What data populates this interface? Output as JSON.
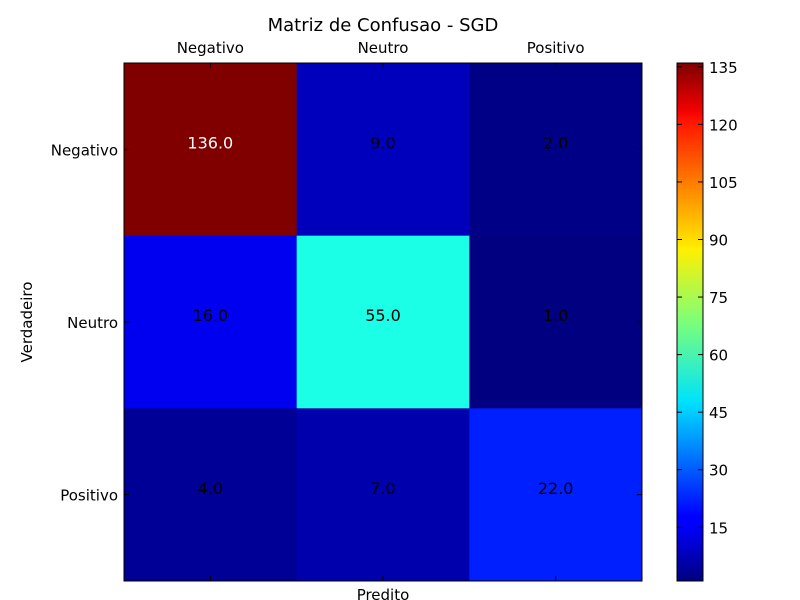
{
  "chart_data": {
    "type": "heatmap",
    "title": "Matriz de Confusao - SGD",
    "xlabel": "Predito",
    "ylabel": "Verdadeiro",
    "x_categories": [
      "Negativo",
      "Neutro",
      "Positivo"
    ],
    "y_categories": [
      "Negativo",
      "Neutro",
      "Positivo"
    ],
    "values": [
      [
        136.0,
        9.0,
        2.0
      ],
      [
        16.0,
        55.0,
        1.0
      ],
      [
        4.0,
        7.0,
        22.0
      ]
    ],
    "cell_labels": [
      [
        "136.0",
        "9.0",
        "2.0"
      ],
      [
        "16.0",
        "55.0",
        "1.0"
      ],
      [
        "4.0",
        "7.0",
        "22.0"
      ]
    ],
    "colormap": "jet",
    "colorbar": {
      "min": 1,
      "max": 136,
      "ticks": [
        15,
        30,
        45,
        60,
        75,
        90,
        105,
        120,
        135
      ]
    },
    "x_ticks_position": "top",
    "grid": false
  }
}
